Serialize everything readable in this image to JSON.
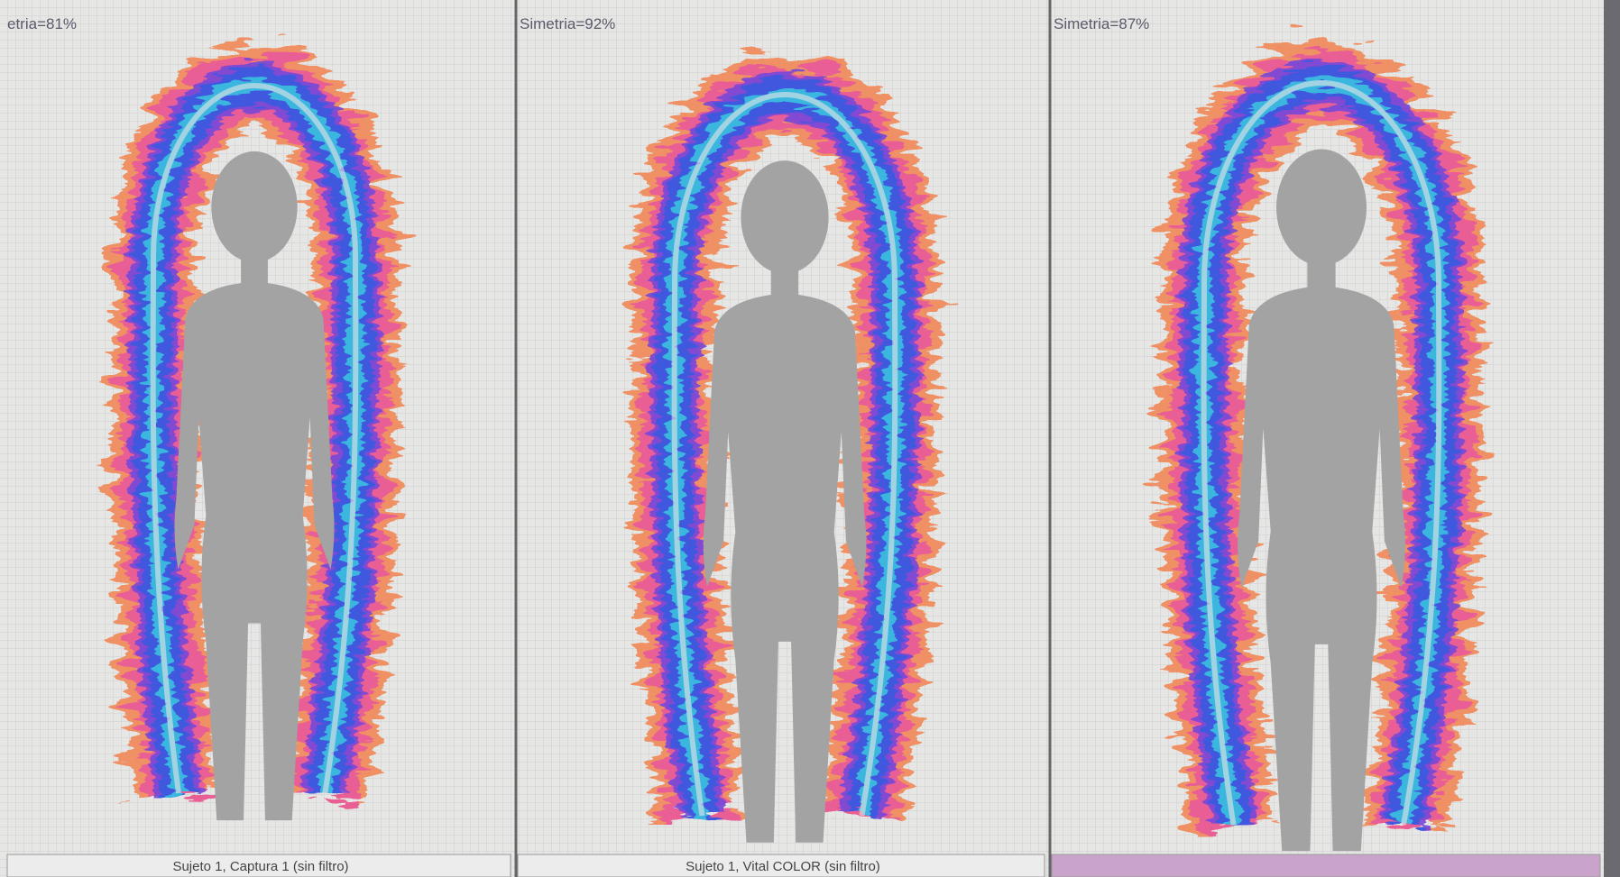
{
  "panels": [
    {
      "symmetry": "etria=81%",
      "caption": "Sujeto 1, Captura 1 (sin filtro)"
    },
    {
      "symmetry": "Simetria=92%",
      "caption": "Sujeto 1, Vital COLOR (sin filtro)"
    },
    {
      "symmetry": "Simetria=87%"
    }
  ]
}
